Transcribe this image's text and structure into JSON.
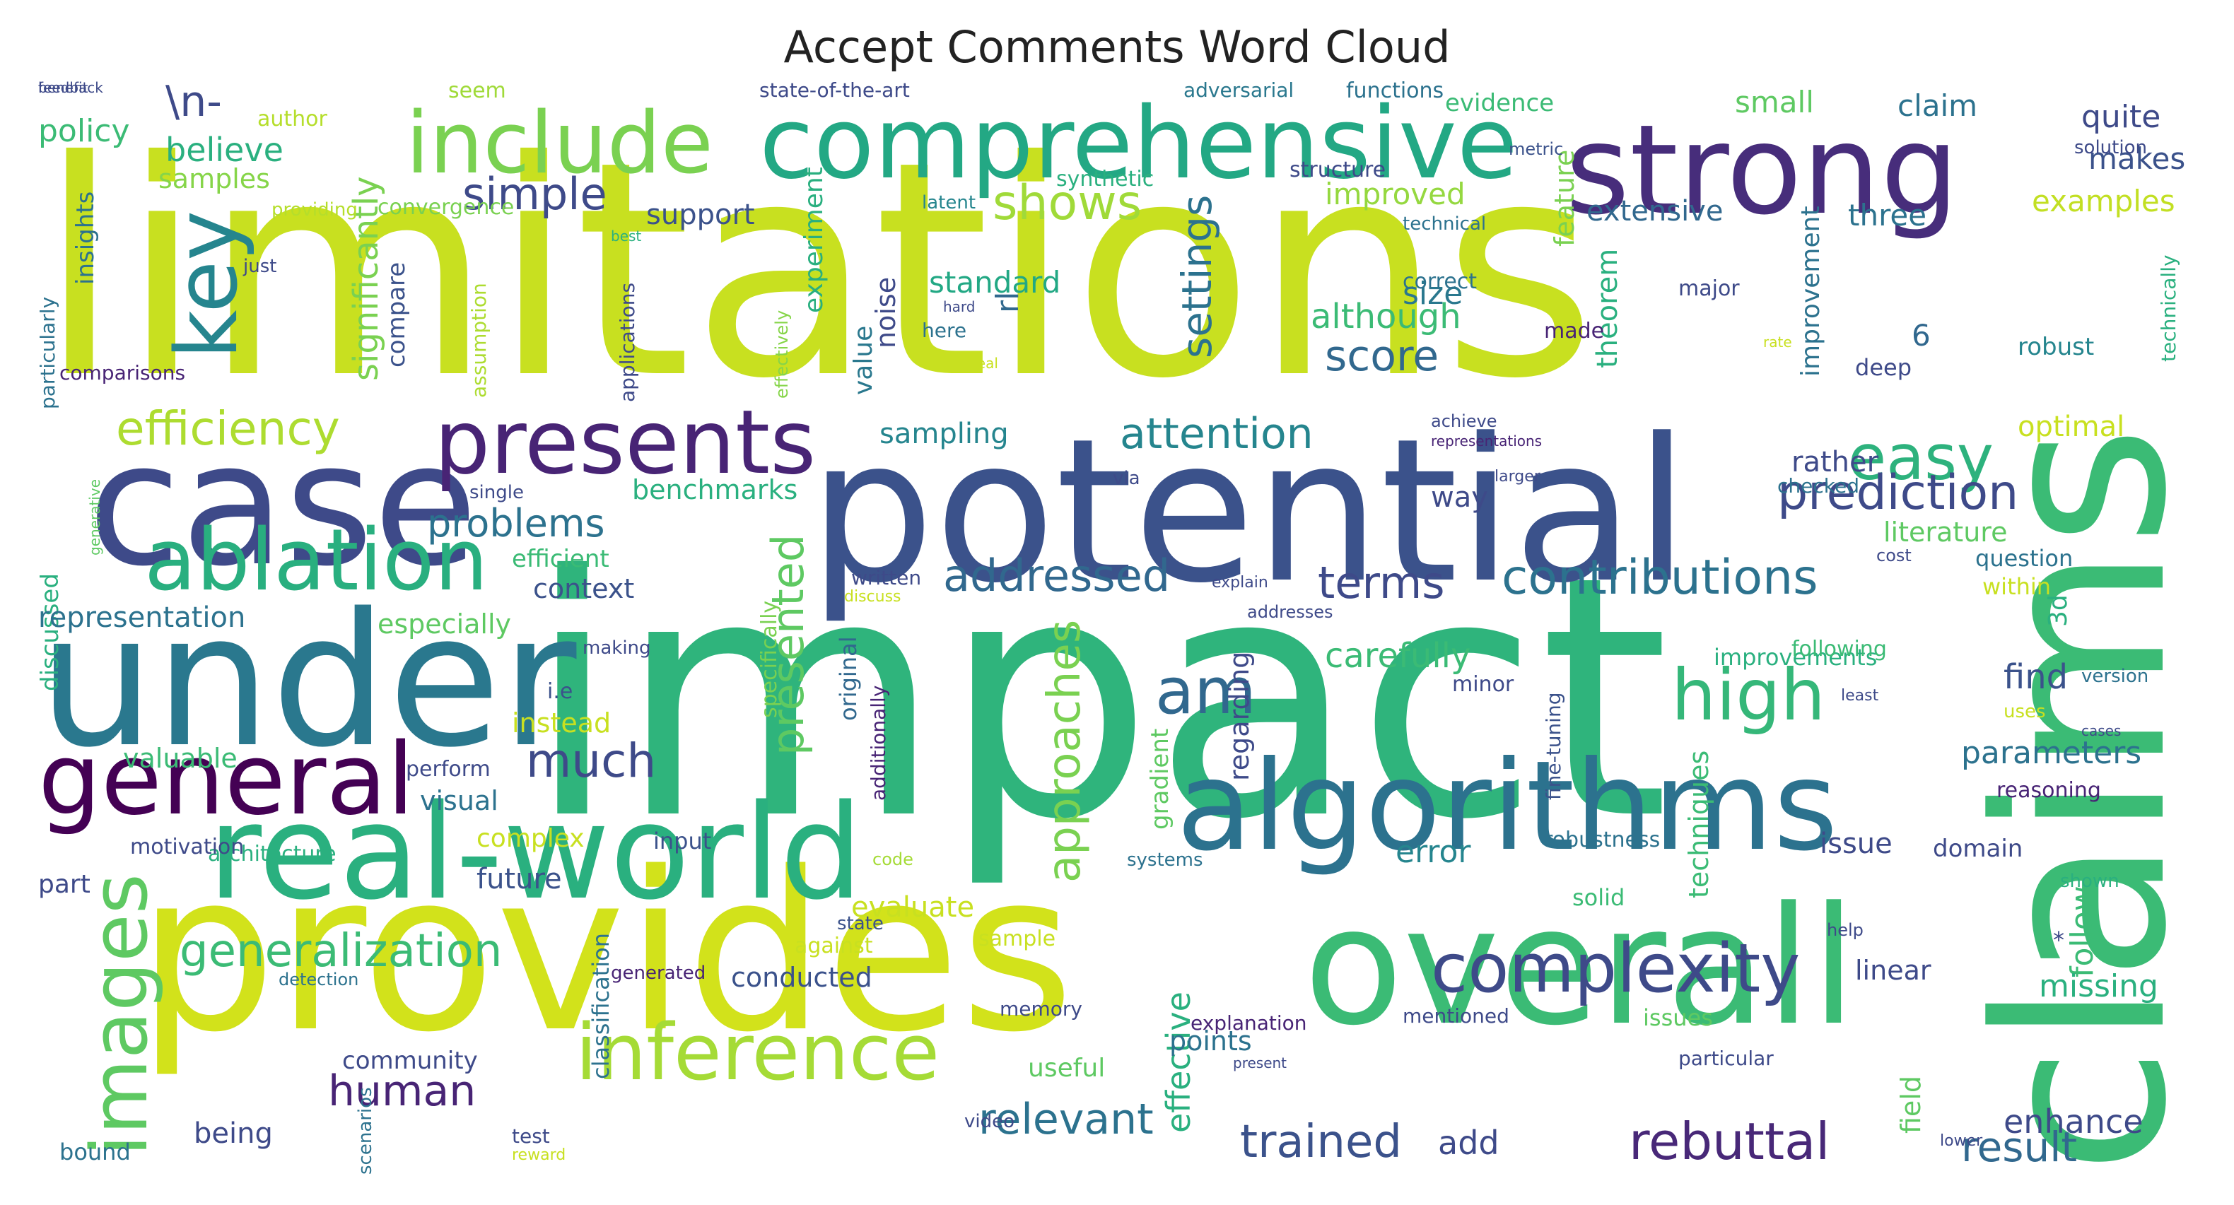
{
  "title": "Accept Comments Word Cloud",
  "palette": {
    "yellow": "#c8e020",
    "lime": "#7ad151",
    "green": "#3bbb75",
    "teal": "#23a884",
    "cyan": "#25858e",
    "blue": "#2c728e",
    "indigo": "#3b528b",
    "purple": "#472d7b",
    "dark": "#440154",
    "pale": "#dde318"
  },
  "words": [
    {
      "text": "limitations",
      "color": "#c8e020",
      "vertical": false
    },
    {
      "text": "impact",
      "color": "#2fb47c",
      "vertical": false
    },
    {
      "text": "potential",
      "color": "#3b528b",
      "vertical": false
    },
    {
      "text": "provides",
      "color": "#d2e21b",
      "vertical": false
    },
    {
      "text": "overall",
      "color": "#3bbb75",
      "vertical": false
    },
    {
      "text": "algorithms",
      "color": "#2c728e",
      "vertical": false
    },
    {
      "text": "claims",
      "color": "#3bbb75",
      "vertical": true
    },
    {
      "text": "strong",
      "color": "#472d7b",
      "vertical": false
    },
    {
      "text": "comprehensive",
      "color": "#23a884",
      "vertical": false
    },
    {
      "text": "under",
      "color": "#2a788e",
      "vertical": false
    },
    {
      "text": "case",
      "color": "#3e4a89",
      "vertical": false
    },
    {
      "text": "real-world",
      "color": "#2ab07f",
      "vertical": false
    },
    {
      "text": "include",
      "color": "#7ad151",
      "vertical": false
    },
    {
      "text": "presents",
      "color": "#482475",
      "vertical": false
    },
    {
      "text": "general",
      "color": "#440154",
      "vertical": false
    },
    {
      "text": "ablation",
      "color": "#29af7f",
      "vertical": false
    },
    {
      "text": "key",
      "color": "#25858e",
      "vertical": true
    },
    {
      "text": "images",
      "color": "#5ec962",
      "vertical": true
    },
    {
      "text": "inference",
      "color": "#a5db36",
      "vertical": false
    },
    {
      "text": "complexity",
      "color": "#3e4a89",
      "vertical": false
    },
    {
      "text": "high",
      "color": "#35b779",
      "vertical": false
    },
    {
      "text": "am",
      "color": "#31688e",
      "vertical": false
    },
    {
      "text": "efficiency",
      "color": "#addc30",
      "vertical": false
    },
    {
      "text": "easy",
      "color": "#2db27d",
      "vertical": false
    },
    {
      "text": "prediction",
      "color": "#3e4a89",
      "vertical": false
    },
    {
      "text": "contributions",
      "color": "#2c728e",
      "vertical": false
    },
    {
      "text": "addressed",
      "color": "#31688e",
      "vertical": false
    },
    {
      "text": "presented",
      "color": "#5ec962",
      "vertical": true
    },
    {
      "text": "approaches",
      "color": "#7ad151",
      "vertical": true
    },
    {
      "text": "generalization",
      "color": "#3bbb75",
      "vertical": false
    },
    {
      "text": "rebuttal",
      "color": "#482878",
      "vertical": false
    },
    {
      "text": "settings",
      "color": "#2c728e",
      "vertical": true
    },
    {
      "text": "simple",
      "color": "#3e4a89",
      "vertical": false
    },
    {
      "text": "shows",
      "color": "#a0da39",
      "vertical": false
    },
    {
      "text": "attention",
      "color": "#25858e",
      "vertical": false
    },
    {
      "text": "score",
      "color": "#31688e",
      "vertical": false
    },
    {
      "text": "terms",
      "color": "#3e4a89",
      "vertical": false
    },
    {
      "text": "problems",
      "color": "#2c728e",
      "vertical": false
    },
    {
      "text": "much",
      "color": "#3e4a89",
      "vertical": false
    },
    {
      "text": "human",
      "color": "#482475",
      "vertical": false
    },
    {
      "text": "relevant",
      "color": "#2c728e",
      "vertical": false
    },
    {
      "text": "trained",
      "color": "#3b528b",
      "vertical": false
    },
    {
      "text": "result",
      "color": "#31688e",
      "vertical": false
    },
    {
      "text": "believe",
      "color": "#2ab07f",
      "vertical": false
    },
    {
      "text": "policy",
      "color": "#3bbb75",
      "vertical": false
    },
    {
      "text": "\\n-",
      "color": "#3e4a89",
      "vertical": false
    },
    {
      "text": "significantly",
      "color": "#7ad151",
      "vertical": true
    },
    {
      "text": "samples",
      "color": "#86d549",
      "vertical": false
    },
    {
      "text": "support",
      "color": "#3b528b",
      "vertical": false
    },
    {
      "text": "standard",
      "color": "#22a884",
      "vertical": false
    },
    {
      "text": "although",
      "color": "#3bbb75",
      "vertical": false
    },
    {
      "text": "size",
      "color": "#2a788e",
      "vertical": false
    },
    {
      "text": "improved",
      "color": "#95d840",
      "vertical": false
    },
    {
      "text": "extensive",
      "color": "#31688e",
      "vertical": false
    },
    {
      "text": "three",
      "color": "#2c728e",
      "vertical": false
    },
    {
      "text": "examples",
      "color": "#c2df23",
      "vertical": false
    },
    {
      "text": "makes",
      "color": "#3b528b",
      "vertical": false
    },
    {
      "text": "quite",
      "color": "#3e4a89",
      "vertical": false
    },
    {
      "text": "claim",
      "color": "#2c728e",
      "vertical": false
    },
    {
      "text": "small",
      "color": "#5ec962",
      "vertical": false
    },
    {
      "text": "evidence",
      "color": "#3bbb75",
      "vertical": false
    },
    {
      "text": "functions",
      "color": "#2c728e",
      "vertical": false
    },
    {
      "text": "adversarial",
      "color": "#2a788e",
      "vertical": false
    },
    {
      "text": "state-of-the-art",
      "color": "#3e4a89",
      "vertical": false
    },
    {
      "text": "seem",
      "color": "#a0da39",
      "vertical": false
    },
    {
      "text": "author",
      "color": "#b5de2b",
      "vertical": false
    },
    {
      "text": "insights",
      "color": "#2c728e",
      "vertical": true
    },
    {
      "text": "just",
      "color": "#3e4a89",
      "vertical": false
    },
    {
      "text": "compare",
      "color": "#3b528b",
      "vertical": true
    },
    {
      "text": "convergence",
      "color": "#7ad151",
      "vertical": false
    },
    {
      "text": "experiment",
      "color": "#29af7f",
      "vertical": true
    },
    {
      "text": "noise",
      "color": "#3e4a89",
      "vertical": true
    },
    {
      "text": "value",
      "color": "#2a788e",
      "vertical": true
    },
    {
      "text": "rl",
      "color": "#31688e",
      "vertical": true
    },
    {
      "text": "feature",
      "color": "#7ad151",
      "vertical": true
    },
    {
      "text": "theorem",
      "color": "#2ab07f",
      "vertical": true
    },
    {
      "text": "improvement",
      "color": "#2c728e",
      "vertical": true
    },
    {
      "text": "technically",
      "color": "#2ab07f",
      "vertical": true
    },
    {
      "text": "robust",
      "color": "#25858e",
      "vertical": false
    },
    {
      "text": "deep",
      "color": "#3e4a89",
      "vertical": false
    },
    {
      "text": "optimal",
      "color": "#c8e020",
      "vertical": false
    },
    {
      "text": "6",
      "color": "#31688e",
      "vertical": false
    },
    {
      "text": "major",
      "color": "#3e4a89",
      "vertical": false
    },
    {
      "text": "made",
      "color": "#482475",
      "vertical": false
    },
    {
      "text": "correct",
      "color": "#2c728e",
      "vertical": false
    },
    {
      "text": "structure",
      "color": "#3e4a89",
      "vertical": false
    },
    {
      "text": "technical",
      "color": "#2c728e",
      "vertical": false
    },
    {
      "text": "metric",
      "color": "#3b528b",
      "vertical": false
    },
    {
      "text": "solution",
      "color": "#3e4a89",
      "vertical": false
    },
    {
      "text": "latent",
      "color": "#25858e",
      "vertical": false
    },
    {
      "text": "synthetic",
      "color": "#2ab07f",
      "vertical": false
    },
    {
      "text": "providing",
      "color": "#b5de2b",
      "vertical": false
    },
    {
      "text": "particularly",
      "color": "#2c728e",
      "vertical": true
    },
    {
      "text": "comparisons",
      "color": "#482475",
      "vertical": false
    },
    {
      "text": "assumption",
      "color": "#addc30",
      "vertical": true
    },
    {
      "text": "applications",
      "color": "#3e4a89",
      "vertical": true
    },
    {
      "text": "effectively",
      "color": "#86d549",
      "vertical": true
    },
    {
      "text": "best",
      "color": "#2ab07f",
      "vertical": false
    },
    {
      "text": "hard",
      "color": "#3e4a89",
      "vertical": false
    },
    {
      "text": "here",
      "color": "#2c728e",
      "vertical": false
    },
    {
      "text": "real",
      "color": "#c8e020",
      "vertical": false
    },
    {
      "text": "rate",
      "color": "#c8e020",
      "vertical": false
    },
    {
      "text": "sampling",
      "color": "#25858e",
      "vertical": false
    },
    {
      "text": "benchmarks",
      "color": "#2ab07f",
      "vertical": false
    },
    {
      "text": "way",
      "color": "#3e4a89",
      "vertical": false
    },
    {
      "text": "rather",
      "color": "#3e4a89",
      "vertical": false
    },
    {
      "text": "checked",
      "color": "#2c728e",
      "vertical": false
    },
    {
      "text": "literature",
      "color": "#5ec962",
      "vertical": false
    },
    {
      "text": "question",
      "color": "#2c728e",
      "vertical": false
    },
    {
      "text": "within",
      "color": "#c8e020",
      "vertical": false
    },
    {
      "text": "cost",
      "color": "#3e4a89",
      "vertical": false
    },
    {
      "text": "3d",
      "color": "#2ab07f",
      "vertical": true
    },
    {
      "text": "achieve",
      "color": "#3e4a89",
      "vertical": false
    },
    {
      "text": "representations",
      "color": "#482475",
      "vertical": false
    },
    {
      "text": "larger",
      "color": "#3e4a89",
      "vertical": false
    },
    {
      "text": "via",
      "color": "#3e4a89",
      "vertical": false
    },
    {
      "text": "discussed",
      "color": "#2ab07f",
      "vertical": true
    },
    {
      "text": "generative",
      "color": "#5ec962",
      "vertical": true
    },
    {
      "text": "single",
      "color": "#3e4a89",
      "vertical": false
    },
    {
      "text": "efficient",
      "color": "#3bbb75",
      "vertical": false
    },
    {
      "text": "context",
      "color": "#3b528b",
      "vertical": false
    },
    {
      "text": "representation",
      "color": "#2c728e",
      "vertical": false
    },
    {
      "text": "especially",
      "color": "#5ec962",
      "vertical": false
    },
    {
      "text": "written",
      "color": "#3e4a89",
      "vertical": false
    },
    {
      "text": "discuss",
      "color": "#c8e020",
      "vertical": false
    },
    {
      "text": "explain",
      "color": "#3e4a89",
      "vertical": false
    },
    {
      "text": "addresses",
      "color": "#3e4a89",
      "vertical": false
    },
    {
      "text": "making",
      "color": "#3e4a89",
      "vertical": false
    },
    {
      "text": "carefully",
      "color": "#3bbb75",
      "vertical": false
    },
    {
      "text": "regarding",
      "color": "#3e4a89",
      "vertical": true
    },
    {
      "text": "improvements",
      "color": "#2ab07f",
      "vertical": false
    },
    {
      "text": "following",
      "color": "#3bbb75",
      "vertical": false
    },
    {
      "text": "find",
      "color": "#3b528b",
      "vertical": false
    },
    {
      "text": "version",
      "color": "#2c728e",
      "vertical": false
    },
    {
      "text": "least",
      "color": "#3e4a89",
      "vertical": false
    },
    {
      "text": "uses",
      "color": "#c8e020",
      "vertical": false
    },
    {
      "text": "cases",
      "color": "#3e4a89",
      "vertical": false
    },
    {
      "text": "i.e",
      "color": "#3b528b",
      "vertical": false
    },
    {
      "text": "instead",
      "color": "#c8e020",
      "vertical": false
    },
    {
      "text": "valuable",
      "color": "#3bbb75",
      "vertical": false
    },
    {
      "text": "perform",
      "color": "#3e4a89",
      "vertical": false
    },
    {
      "text": "visual",
      "color": "#2c728e",
      "vertical": false
    },
    {
      "text": "original",
      "color": "#31688e",
      "vertical": true
    },
    {
      "text": "specifically",
      "color": "#7ad151",
      "vertical": true
    },
    {
      "text": "additionally",
      "color": "#482475",
      "vertical": true
    },
    {
      "text": "gradient",
      "color": "#5ec962",
      "vertical": true
    },
    {
      "text": "minor",
      "color": "#3e4a89",
      "vertical": false
    },
    {
      "text": "fine-tuning",
      "color": "#3b528b",
      "vertical": true
    },
    {
      "text": "techniques",
      "color": "#3bbb75",
      "vertical": true
    },
    {
      "text": "parameters",
      "color": "#2c728e",
      "vertical": false
    },
    {
      "text": "reasoning",
      "color": "#482475",
      "vertical": false
    },
    {
      "text": "complex",
      "color": "#c8e020",
      "vertical": false
    },
    {
      "text": "input",
      "color": "#3b528b",
      "vertical": false
    },
    {
      "text": "architecture",
      "color": "#2ab07f",
      "vertical": false
    },
    {
      "text": "motivation",
      "color": "#3e4a89",
      "vertical": false
    },
    {
      "text": "future",
      "color": "#3b528b",
      "vertical": false
    },
    {
      "text": "code",
      "color": "#a5db36",
      "vertical": false
    },
    {
      "text": "systems",
      "color": "#2c728e",
      "vertical": false
    },
    {
      "text": "evaluate",
      "color": "#c8e020",
      "vertical": false
    },
    {
      "text": "error",
      "color": "#25858e",
      "vertical": false
    },
    {
      "text": "robustness",
      "color": "#2c728e",
      "vertical": false
    },
    {
      "text": "issue",
      "color": "#3e4a89",
      "vertical": false
    },
    {
      "text": "domain",
      "color": "#3e4a89",
      "vertical": false
    },
    {
      "text": "shown",
      "color": "#2ab07f",
      "vertical": false
    },
    {
      "text": "follow",
      "color": "#3bbb75",
      "vertical": true
    },
    {
      "text": "solid",
      "color": "#3bbb75",
      "vertical": false
    },
    {
      "text": "help",
      "color": "#3e4a89",
      "vertical": false
    },
    {
      "text": "*",
      "color": "#3e4a89",
      "vertical": false
    },
    {
      "text": "part",
      "color": "#3e4a89",
      "vertical": false
    },
    {
      "text": "classification",
      "color": "#2c728e",
      "vertical": true
    },
    {
      "text": "against",
      "color": "#c8e020",
      "vertical": false
    },
    {
      "text": "generated",
      "color": "#482475",
      "vertical": false
    },
    {
      "text": "conducted",
      "color": "#3b528b",
      "vertical": false
    },
    {
      "text": "state",
      "color": "#3b528b",
      "vertical": false
    },
    {
      "text": "sample",
      "color": "#c8e020",
      "vertical": false
    },
    {
      "text": "memory",
      "color": "#3e4a89",
      "vertical": false
    },
    {
      "text": "effective",
      "color": "#2ab07f",
      "vertical": true
    },
    {
      "text": "points",
      "color": "#2c728e",
      "vertical": false
    },
    {
      "text": "linear",
      "color": "#3e4a89",
      "vertical": false
    },
    {
      "text": "missing",
      "color": "#2ab07f",
      "vertical": false
    },
    {
      "text": "mentioned",
      "color": "#3e4a89",
      "vertical": false
    },
    {
      "text": "issues",
      "color": "#5ec962",
      "vertical": false
    },
    {
      "text": "explanation",
      "color": "#482475",
      "vertical": false
    },
    {
      "text": "detection",
      "color": "#2c728e",
      "vertical": false
    },
    {
      "text": "community",
      "color": "#3e4a89",
      "vertical": false
    },
    {
      "text": "scenarios",
      "color": "#2c728e",
      "vertical": true
    },
    {
      "text": "useful",
      "color": "#5ec962",
      "vertical": false
    },
    {
      "text": "present",
      "color": "#3e4a89",
      "vertical": false
    },
    {
      "text": "particular",
      "color": "#3e4a89",
      "vertical": false
    },
    {
      "text": "field",
      "color": "#5ec962",
      "vertical": true
    },
    {
      "text": "enhance",
      "color": "#3e4a89",
      "vertical": false
    },
    {
      "text": "being",
      "color": "#3e4a89",
      "vertical": false
    },
    {
      "text": "bound",
      "color": "#2c728e",
      "vertical": false
    },
    {
      "text": "test",
      "color": "#3e4a89",
      "vertical": false
    },
    {
      "text": "reward",
      "color": "#c8e020",
      "vertical": false
    },
    {
      "text": "video",
      "color": "#3e4a89",
      "vertical": false
    },
    {
      "text": "add",
      "color": "#3e4a89",
      "vertical": false
    },
    {
      "text": "lower",
      "color": "#3e4a89",
      "vertical": false
    },
    {
      "text": "feedback",
      "color": "#3e4a89",
      "vertical": false
    },
    {
      "text": "benefit",
      "color": "#3e4a89",
      "vertical": false
    }
  ]
}
